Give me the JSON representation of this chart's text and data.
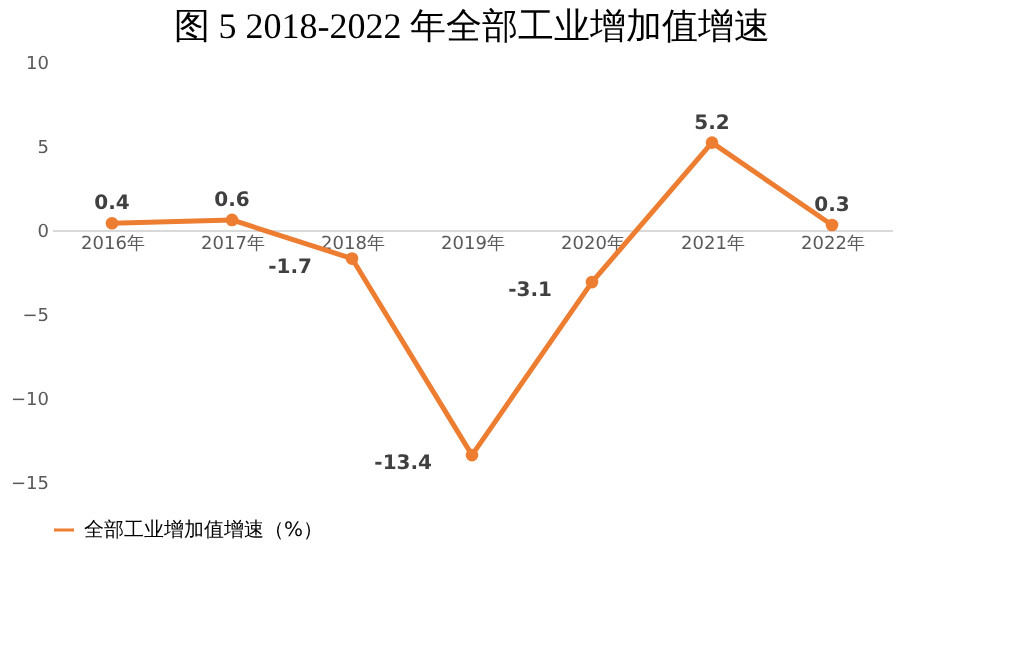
{
  "chart_data": {
    "type": "line",
    "title": "图 5    2018-2022 年全部工业增加值增速",
    "categories": [
      "2016年",
      "2017年",
      "2018年",
      "2019年",
      "2020年",
      "2021年",
      "2022年"
    ],
    "series": [
      {
        "name": "全部工业增加值增速（%）",
        "color": "#ed7d31",
        "values": [
          0.4,
          0.6,
          -1.7,
          -13.4,
          -3.1,
          5.2,
          0.3
        ]
      }
    ],
    "ylim": [
      -15,
      10
    ],
    "yticks": [
      -15,
      -10,
      -5,
      0,
      5,
      10
    ],
    "grid": false,
    "legend": "bottom",
    "marker": "circle",
    "line_style": "solid",
    "data_labels": true
  }
}
